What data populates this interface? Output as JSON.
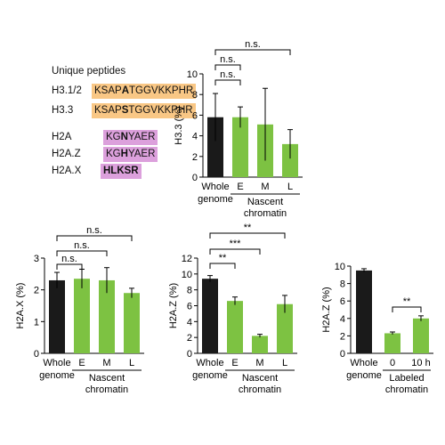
{
  "peptides": {
    "title": "Unique peptides",
    "rows": [
      {
        "label": "H3.1/2",
        "seq_pre": "KSAP",
        "seq_bold": "A",
        "seq_post": "TGGVKKPHR",
        "bg": "#f9c785"
      },
      {
        "label": "H3.3",
        "seq_pre": "KSAP",
        "seq_bold": "S",
        "seq_post": "TGGVKKPHR",
        "bg": "#f9c785"
      },
      {
        "label": "H2A",
        "seq_pre": "KG",
        "seq_bold": "N",
        "seq_post": "YAER",
        "bg": "#dca0dc"
      },
      {
        "label": "H2A.Z",
        "seq_pre": "KG",
        "seq_bold": "H",
        "seq_post": "YAER",
        "bg": "#dca0dc"
      },
      {
        "label": "H2A.X",
        "seq_pre": "",
        "seq_bold": "HLKSR",
        "seq_post": "",
        "bg": "#dca0dc"
      }
    ]
  },
  "colors": {
    "whole": "#1a1a1a",
    "nascent": "#7dc242"
  },
  "chart_data": [
    {
      "id": "h33",
      "type": "bar",
      "ylabel": "H3.3 (%)",
      "ylim": [
        0,
        10
      ],
      "yticks": [
        "0",
        "2",
        "4",
        "6",
        "8",
        "10"
      ],
      "categories": [
        "Whole genome",
        "E",
        "M",
        "L"
      ],
      "tick_labels": [
        "Whole",
        "E",
        "M",
        "L"
      ],
      "values": [
        5.8,
        5.8,
        5.1,
        3.2
      ],
      "errors": [
        2.3,
        1.0,
        3.5,
        1.4
      ],
      "group_label_left": "genome",
      "group_label_right": [
        "Nascent",
        "chromatin"
      ],
      "significance": [
        "n.s.",
        "n.s.",
        "n.s."
      ]
    },
    {
      "id": "h2ax",
      "type": "bar",
      "ylabel": "H2A.X (%)",
      "ylim": [
        0,
        3
      ],
      "yticks": [
        "0",
        "1",
        "2",
        "3"
      ],
      "categories": [
        "Whole genome",
        "E",
        "M",
        "L"
      ],
      "tick_labels": [
        "Whole",
        "E",
        "M",
        "L"
      ],
      "values": [
        2.3,
        2.35,
        2.3,
        1.9
      ],
      "errors": [
        0.25,
        0.3,
        0.4,
        0.15
      ],
      "group_label_left": "genome",
      "group_label_right": [
        "Nascent",
        "chromatin"
      ],
      "significance": [
        "n.s.",
        "n.s.",
        "n.s."
      ]
    },
    {
      "id": "h2az",
      "type": "bar",
      "ylabel": "H2A.Z (%)",
      "ylim": [
        0,
        12
      ],
      "yticks": [
        "0",
        "2",
        "4",
        "6",
        "8",
        "10",
        "12"
      ],
      "categories": [
        "Whole genome",
        "E",
        "M",
        "L"
      ],
      "tick_labels": [
        "Whole",
        "E",
        "M",
        "L"
      ],
      "values": [
        9.4,
        6.6,
        2.2,
        6.2
      ],
      "errors": [
        0.4,
        0.5,
        0.2,
        1.1
      ],
      "group_label_left": "genome",
      "group_label_right": [
        "Nascent",
        "chromatin"
      ],
      "significance": [
        "**",
        "***",
        "**"
      ]
    },
    {
      "id": "h2az_labeled",
      "type": "bar",
      "ylabel": "H2A.Z (%)",
      "ylim": [
        0,
        10
      ],
      "yticks": [
        "0",
        "2",
        "4",
        "6",
        "8",
        "10"
      ],
      "categories": [
        "Whole genome",
        "0",
        "10 h"
      ],
      "tick_labels": [
        "Whole",
        "0",
        "10 h"
      ],
      "values": [
        9.5,
        2.3,
        4.0
      ],
      "errors": [
        0.2,
        0.15,
        0.3
      ],
      "group_label_left": "genome",
      "group_label_right": [
        "Labeled",
        "chromatin"
      ],
      "significance": [
        "**"
      ]
    }
  ]
}
